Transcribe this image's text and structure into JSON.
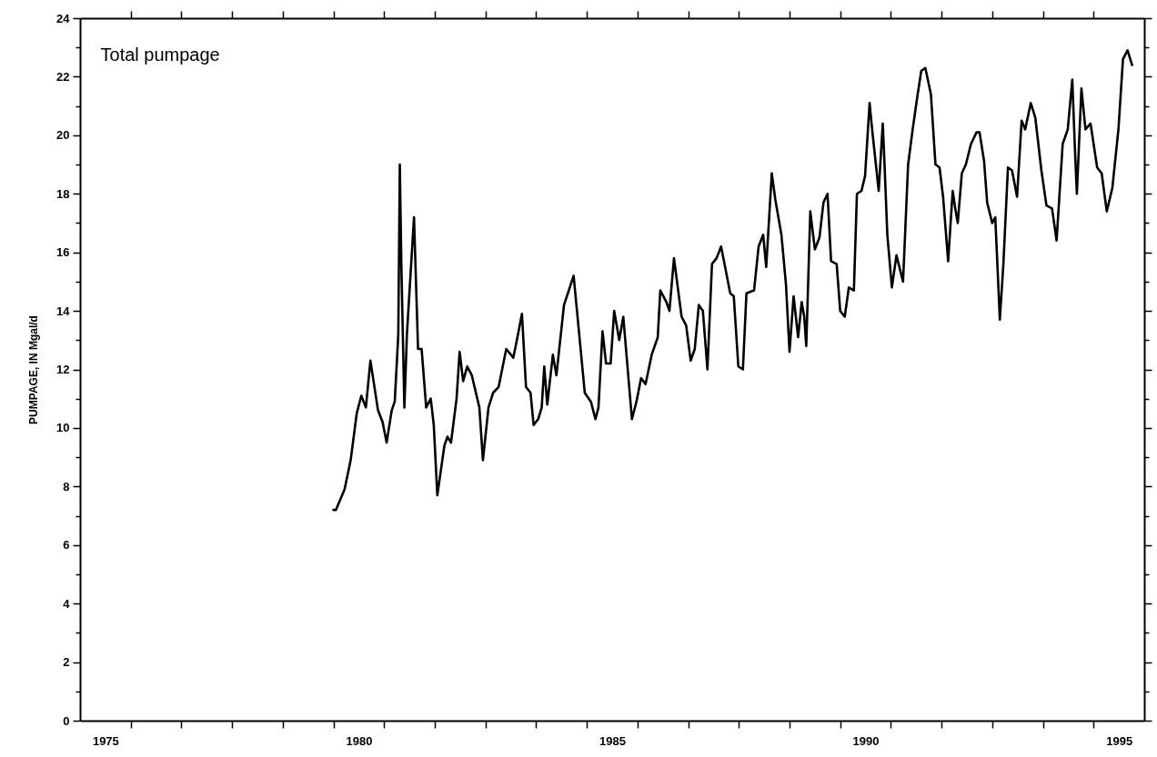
{
  "chart_data": {
    "type": "line",
    "title": "Total pumpage",
    "ylabel": "PUMPAGE, IN Mgal/d",
    "xlim": [
      1975,
      1996
    ],
    "ylim": [
      0,
      24
    ],
    "xticks": [
      {
        "value": 1975.5,
        "label": "1975"
      },
      {
        "value": 1976,
        "label": null
      },
      {
        "value": 1977,
        "label": null
      },
      {
        "value": 1978,
        "label": null
      },
      {
        "value": 1979,
        "label": null
      },
      {
        "value": 1980,
        "label": null
      },
      {
        "value": 1980.5,
        "label": "1980"
      },
      {
        "value": 1981,
        "label": null
      },
      {
        "value": 1982,
        "label": null
      },
      {
        "value": 1983,
        "label": null
      },
      {
        "value": 1984,
        "label": null
      },
      {
        "value": 1985,
        "label": null
      },
      {
        "value": 1985.5,
        "label": "1985"
      },
      {
        "value": 1986,
        "label": null
      },
      {
        "value": 1987,
        "label": null
      },
      {
        "value": 1988,
        "label": null
      },
      {
        "value": 1989,
        "label": null
      },
      {
        "value": 1990,
        "label": null
      },
      {
        "value": 1990.5,
        "label": "1990"
      },
      {
        "value": 1991,
        "label": null
      },
      {
        "value": 1992,
        "label": null
      },
      {
        "value": 1993,
        "label": null
      },
      {
        "value": 1994,
        "label": null
      },
      {
        "value": 1995,
        "label": null
      },
      {
        "value": 1995.5,
        "label": "1995"
      }
    ],
    "yticks": [
      0,
      {
        "value": 1,
        "label": null
      },
      2,
      {
        "value": 3,
        "label": null
      },
      4,
      {
        "value": 5,
        "label": null
      },
      6,
      {
        "value": 7,
        "label": null
      },
      8,
      {
        "value": 9,
        "label": null
      },
      10,
      {
        "value": 11,
        "label": null
      },
      12,
      {
        "value": 13,
        "label": null
      },
      14,
      {
        "value": 15,
        "label": null
      },
      16,
      {
        "value": 17,
        "label": null
      },
      18,
      {
        "value": 19,
        "label": null
      },
      20,
      {
        "value": 21,
        "label": null
      },
      22,
      {
        "value": 23,
        "label": null
      },
      24
    ],
    "grid": false,
    "series": [
      {
        "color": "#000000",
        "x": [
          1980.0,
          1980.05,
          1980.22,
          1980.34,
          1980.46,
          1980.55,
          1980.64,
          1980.73,
          1980.88,
          1980.97,
          1981.05,
          1981.15,
          1981.21,
          1981.28,
          1981.31,
          1981.34,
          1981.4,
          1981.45,
          1981.59,
          1981.67,
          1981.74,
          1981.83,
          1981.92,
          1981.98,
          1982.05,
          1982.19,
          1982.25,
          1982.32,
          1982.43,
          1982.49,
          1982.56,
          1982.64,
          1982.73,
          1982.88,
          1982.95,
          1983.06,
          1983.15,
          1983.26,
          1983.41,
          1983.55,
          1983.62,
          1983.72,
          1983.8,
          1983.89,
          1983.95,
          1984.04,
          1984.11,
          1984.16,
          1984.22,
          1984.33,
          1984.4,
          1984.55,
          1984.74,
          1984.96,
          1985.08,
          1985.17,
          1985.23,
          1985.31,
          1985.38,
          1985.47,
          1985.54,
          1985.64,
          1985.72,
          1985.89,
          1985.98,
          1986.07,
          1986.16,
          1986.28,
          1986.4,
          1986.45,
          1986.57,
          1986.63,
          1986.72,
          1986.87,
          1986.96,
          1987.05,
          1987.13,
          1987.21,
          1987.29,
          1987.38,
          1987.47,
          1987.56,
          1987.65,
          1987.74,
          1987.83,
          1987.9,
          1987.99,
          1988.08,
          1988.15,
          1988.3,
          1988.39,
          1988.48,
          1988.54,
          1988.65,
          1988.72,
          1988.84,
          1988.93,
          1989.0,
          1989.08,
          1989.17,
          1989.24,
          1989.29,
          1989.33,
          1989.41,
          1989.5,
          1989.59,
          1989.67,
          1989.75,
          1989.82,
          1989.93,
          1990.0,
          1990.09,
          1990.17,
          1990.27,
          1990.33,
          1990.42,
          1990.49,
          1990.58,
          1990.63,
          1990.76,
          1990.84,
          1990.87,
          1990.93,
          1991.02,
          1991.11,
          1991.24,
          1991.34,
          1991.43,
          1991.52,
          1991.6,
          1991.68,
          1991.79,
          1991.88,
          1991.96,
          1992.03,
          1992.13,
          1992.22,
          1992.27,
          1992.32,
          1992.4,
          1992.48,
          1992.58,
          1992.69,
          1992.75,
          1992.84,
          1992.9,
          1993.0,
          1993.06,
          1993.15,
          1993.22,
          1993.31,
          1993.39,
          1993.49,
          1993.58,
          1993.65,
          1993.76,
          1993.85,
          1993.97,
          1994.07,
          1994.18,
          1994.27,
          1994.39,
          1994.49,
          1994.58,
          1994.63,
          1994.67,
          1994.76,
          1994.84,
          1994.94,
          1995.07,
          1995.16,
          1995.26,
          1995.37,
          1995.49,
          1995.58,
          1995.67,
          1995.76
        ],
        "values": [
          7.2,
          7.2,
          7.9,
          8.9,
          10.5,
          11.1,
          10.7,
          12.3,
          10.6,
          10.2,
          9.5,
          10.6,
          10.9,
          13.2,
          19.0,
          15.6,
          10.7,
          13.2,
          17.2,
          12.7,
          12.7,
          10.7,
          11.0,
          10.1,
          7.7,
          9.4,
          9.7,
          9.5,
          11.0,
          12.6,
          11.6,
          12.1,
          11.8,
          10.7,
          8.9,
          10.7,
          11.2,
          11.4,
          12.7,
          12.4,
          13.0,
          13.9,
          11.4,
          11.2,
          10.1,
          10.3,
          10.7,
          12.1,
          10.8,
          12.5,
          11.8,
          14.2,
          15.2,
          11.2,
          10.9,
          10.3,
          10.7,
          13.3,
          12.2,
          12.2,
          14.0,
          13.0,
          13.8,
          10.3,
          10.9,
          11.7,
          11.5,
          12.5,
          13.1,
          14.7,
          14.3,
          14.0,
          15.8,
          13.8,
          13.5,
          12.3,
          12.7,
          14.2,
          14.0,
          12.0,
          15.6,
          15.8,
          16.2,
          15.4,
          14.6,
          14.5,
          12.1,
          12.0,
          14.6,
          14.7,
          16.2,
          16.6,
          15.5,
          18.7,
          17.8,
          16.6,
          14.9,
          12.6,
          14.5,
          13.1,
          14.3,
          13.8,
          12.8,
          17.4,
          16.1,
          16.5,
          17.7,
          18.0,
          15.7,
          15.6,
          14.0,
          13.8,
          14.8,
          14.7,
          18.0,
          18.1,
          18.6,
          21.1,
          20.2,
          18.1,
          20.4,
          19.2,
          16.6,
          14.8,
          15.9,
          15.0,
          19.0,
          20.2,
          21.3,
          22.2,
          22.3,
          21.4,
          19.0,
          18.9,
          17.9,
          15.7,
          18.1,
          17.5,
          17.0,
          18.7,
          19.0,
          19.7,
          20.1,
          20.1,
          19.1,
          17.7,
          17.0,
          17.2,
          13.7,
          15.6,
          18.9,
          18.8,
          17.9,
          20.5,
          20.2,
          21.1,
          20.6,
          18.8,
          17.6,
          17.5,
          16.4,
          19.7,
          20.2,
          21.9,
          19.6,
          18.0,
          21.6,
          20.2,
          20.4,
          18.9,
          18.7,
          17.4,
          18.2,
          20.2,
          22.6,
          22.9,
          22.4
        ]
      }
    ]
  }
}
